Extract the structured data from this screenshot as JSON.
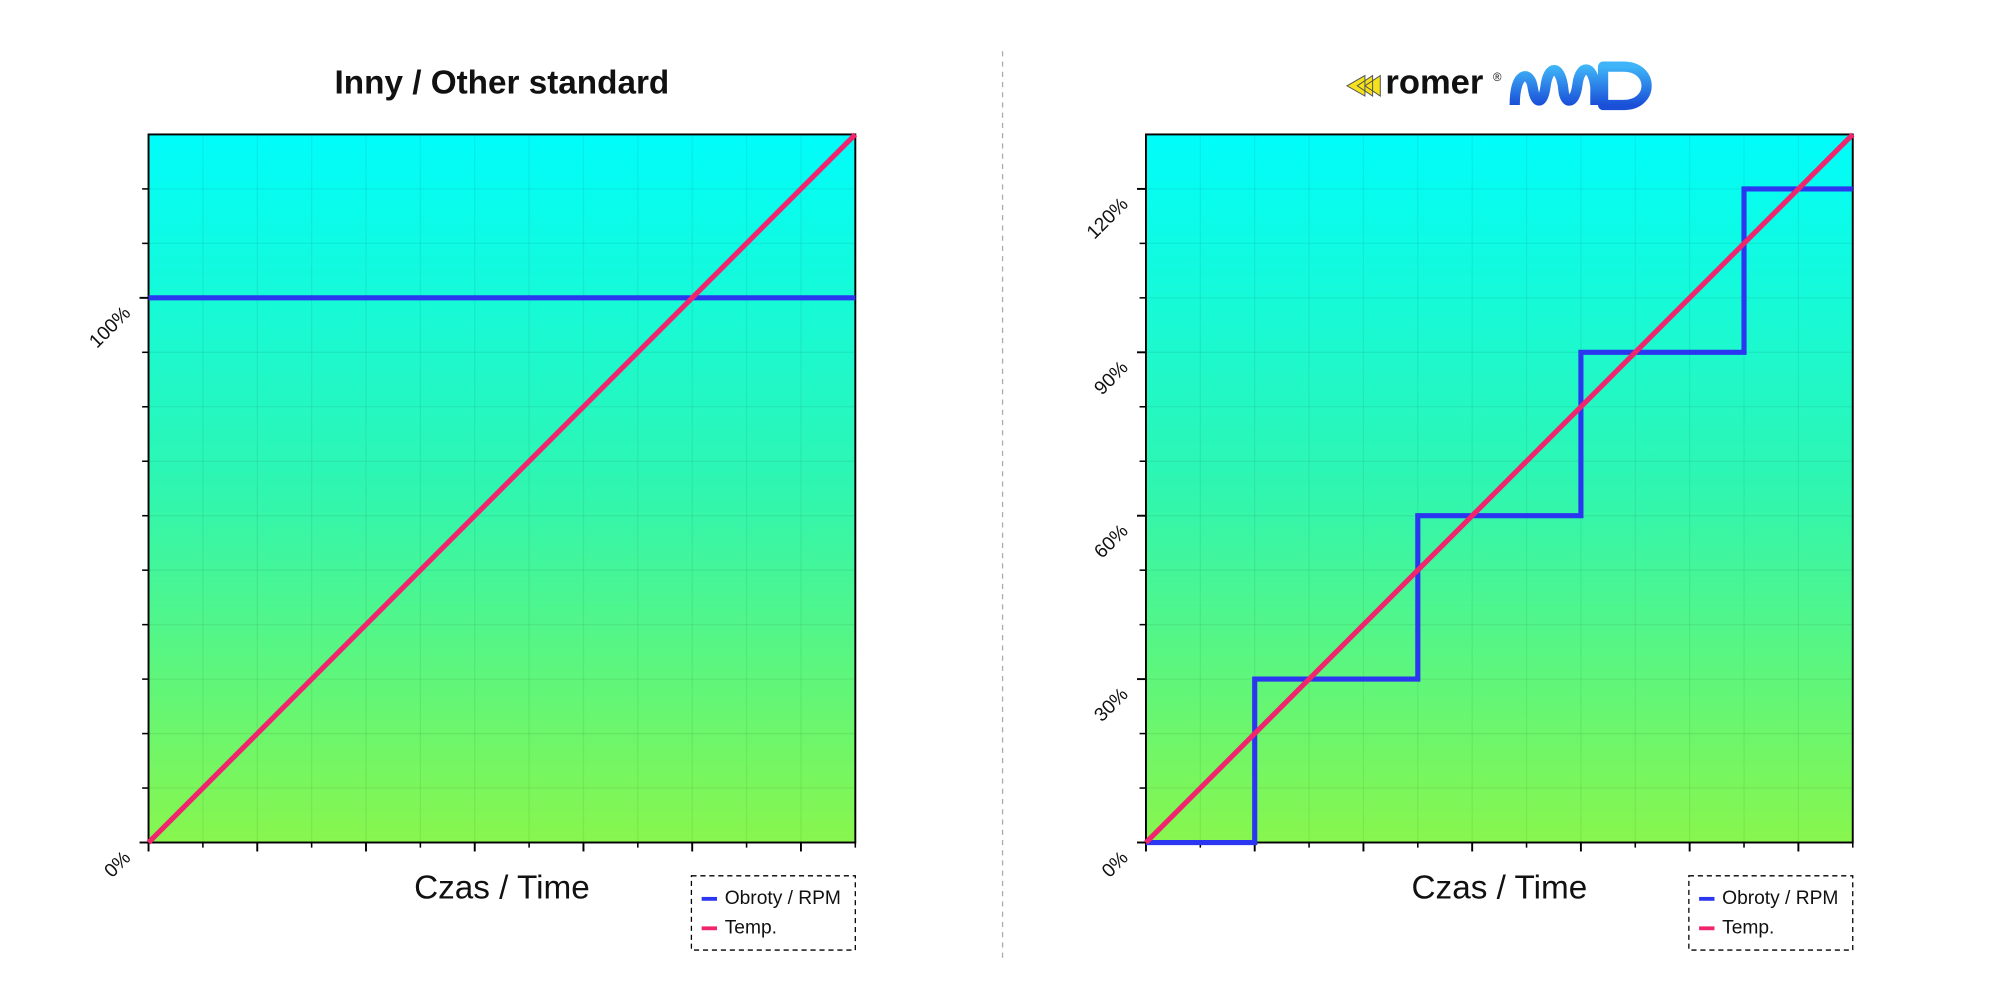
{
  "chart_data": [
    {
      "type": "line",
      "title": "Inny / Other standard",
      "xlabel": "Czas / Time",
      "xlim": [
        0,
        130
      ],
      "ylim": [
        0,
        130
      ],
      "xticks": [
        0,
        20,
        40,
        60,
        80,
        100,
        120
      ],
      "xminorticks": [
        10,
        30,
        50,
        70,
        90,
        110,
        130
      ],
      "yticks": [
        {
          "value": 0,
          "label": "0%"
        },
        {
          "value": 100,
          "label": "100%"
        }
      ],
      "yminorticks": [
        10,
        20,
        30,
        40,
        50,
        60,
        70,
        80,
        90,
        110,
        120
      ],
      "grid": true,
      "legend": "lower right",
      "series": [
        {
          "name": "Obroty / RPM",
          "color": "#2b36f0",
          "x": [
            0,
            130
          ],
          "values": [
            100,
            100
          ]
        },
        {
          "name": "Temp.",
          "color": "#f0256e",
          "x": [
            0,
            130
          ],
          "values": [
            0,
            130
          ]
        }
      ]
    },
    {
      "type": "line",
      "title": "romer",
      "xlabel": "Czas / Time",
      "xlim": [
        0,
        130
      ],
      "ylim": [
        0,
        130
      ],
      "xticks": [
        0,
        20,
        40,
        60,
        80,
        100,
        120
      ],
      "xminorticks": [
        10,
        30,
        50,
        70,
        90,
        110,
        130
      ],
      "yticks": [
        {
          "value": 0,
          "label": "0%"
        },
        {
          "value": 30,
          "label": "30%"
        },
        {
          "value": 60,
          "label": "60%"
        },
        {
          "value": 90,
          "label": "90%"
        },
        {
          "value": 120,
          "label": "120%"
        }
      ],
      "yminorticks": [
        10,
        20,
        40,
        50,
        70,
        80,
        100,
        110
      ],
      "grid": true,
      "legend": "lower right",
      "series": [
        {
          "name": "Obroty / RPM",
          "color": "#2b36f0",
          "x": [
            0,
            20,
            20,
            50,
            50,
            80,
            80,
            110,
            110,
            130
          ],
          "values": [
            0,
            0,
            30,
            30,
            60,
            60,
            90,
            90,
            120,
            120
          ]
        },
        {
          "name": "Temp.",
          "color": "#f0256e",
          "x": [
            0,
            130
          ],
          "values": [
            0,
            130
          ]
        }
      ]
    }
  ]
}
